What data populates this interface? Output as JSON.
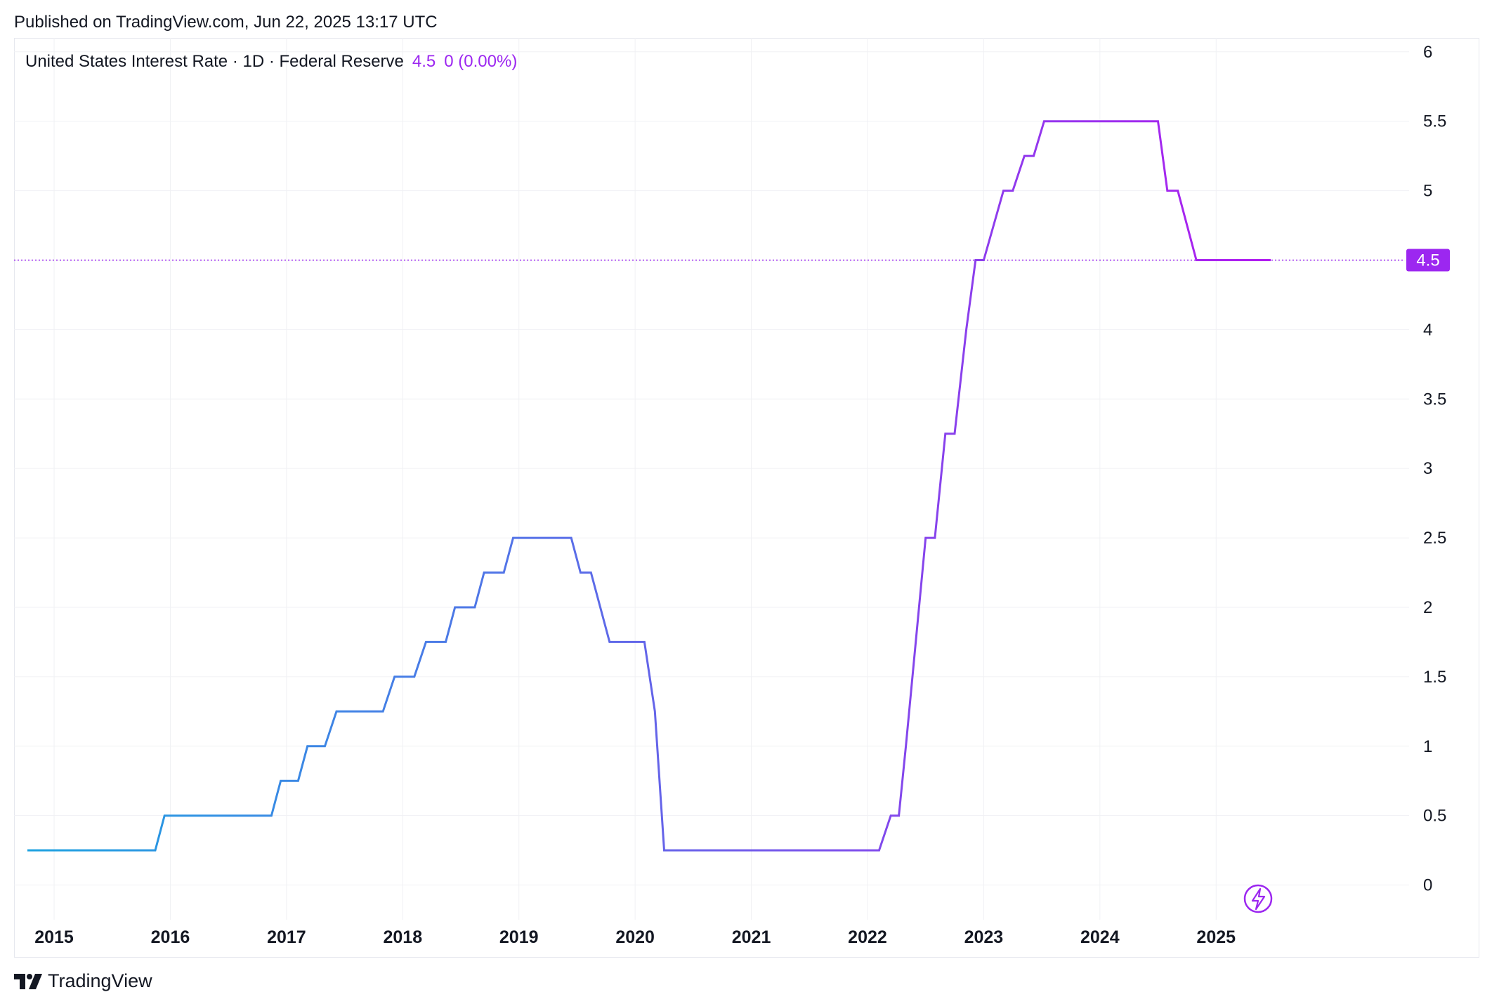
{
  "header": {
    "published": "Published on TradingView.com, Jun 22, 2025 13:17 UTC"
  },
  "legend": {
    "symbol": "United States Interest Rate · 1D · Federal Reserve",
    "value": "4.5",
    "change": "0 (0.00%)"
  },
  "footer": {
    "brand": "TradingView"
  },
  "colors": {
    "line_start": "#1aa3e0",
    "line_mid": "#5a6de8",
    "line_end": "#b01cf0",
    "accent": "#9c27f0",
    "grid": "#f0f1f4",
    "text": "#131722"
  },
  "icons": {
    "lightning": "lightning-bolt-icon",
    "logo": "tradingview-logo-icon"
  },
  "chart_data": {
    "type": "line",
    "title": "United States Interest Rate",
    "series": [
      {
        "name": "United States Interest Rate",
        "x": [
          2014.77,
          2015.87,
          2015.95,
          2016.87,
          2016.95,
          2017.1,
          2017.18,
          2017.33,
          2017.43,
          2017.83,
          2017.93,
          2018.1,
          2018.2,
          2018.37,
          2018.45,
          2018.62,
          2018.7,
          2018.87,
          2018.95,
          2019.45,
          2019.53,
          2019.62,
          2019.78,
          2020.08,
          2020.17,
          2020.25,
          2022.1,
          2022.2,
          2022.27,
          2022.33,
          2022.5,
          2022.58,
          2022.67,
          2022.75,
          2022.85,
          2022.93,
          2023.0,
          2023.17,
          2023.25,
          2023.35,
          2023.43,
          2023.52,
          2024.5,
          2024.58,
          2024.67,
          2024.83,
          2024.93,
          2025.47
        ],
        "values": [
          0.25,
          0.25,
          0.5,
          0.5,
          0.75,
          0.75,
          1.0,
          1.0,
          1.25,
          1.25,
          1.5,
          1.5,
          1.75,
          1.75,
          2.0,
          2.0,
          2.25,
          2.25,
          2.5,
          2.5,
          2.25,
          2.25,
          1.75,
          1.75,
          1.25,
          0.25,
          0.25,
          0.5,
          0.5,
          1.0,
          2.5,
          2.5,
          3.25,
          3.25,
          4.0,
          4.5,
          4.5,
          5.0,
          5.0,
          5.25,
          5.25,
          5.5,
          5.5,
          5.0,
          5.0,
          4.5,
          4.5,
          4.5
        ]
      }
    ],
    "xlabel": "",
    "ylabel": "",
    "x_ticks": [
      2015,
      2016,
      2017,
      2018,
      2019,
      2020,
      2021,
      2022,
      2023,
      2024,
      2025
    ],
    "x_tick_labels": [
      "2015",
      "2016",
      "2017",
      "2018",
      "2019",
      "2020",
      "2021",
      "2022",
      "2023",
      "2024",
      "2025"
    ],
    "y_ticks": [
      0,
      0.5,
      1,
      1.5,
      2,
      2.5,
      3,
      3.5,
      4,
      4.5,
      5,
      5.5,
      6
    ],
    "y_tick_labels": [
      "0",
      "0.5",
      "1",
      "1.5",
      "2",
      "2.5",
      "3",
      "3.5",
      "4",
      "4.5",
      "5",
      "5.5",
      "6"
    ],
    "xlim": [
      2014.77,
      2026.8
    ],
    "ylim": [
      -0.25,
      6.1
    ],
    "last_value": 4.5,
    "last_value_label": "4.5",
    "grid": true,
    "legend": "top-left"
  }
}
